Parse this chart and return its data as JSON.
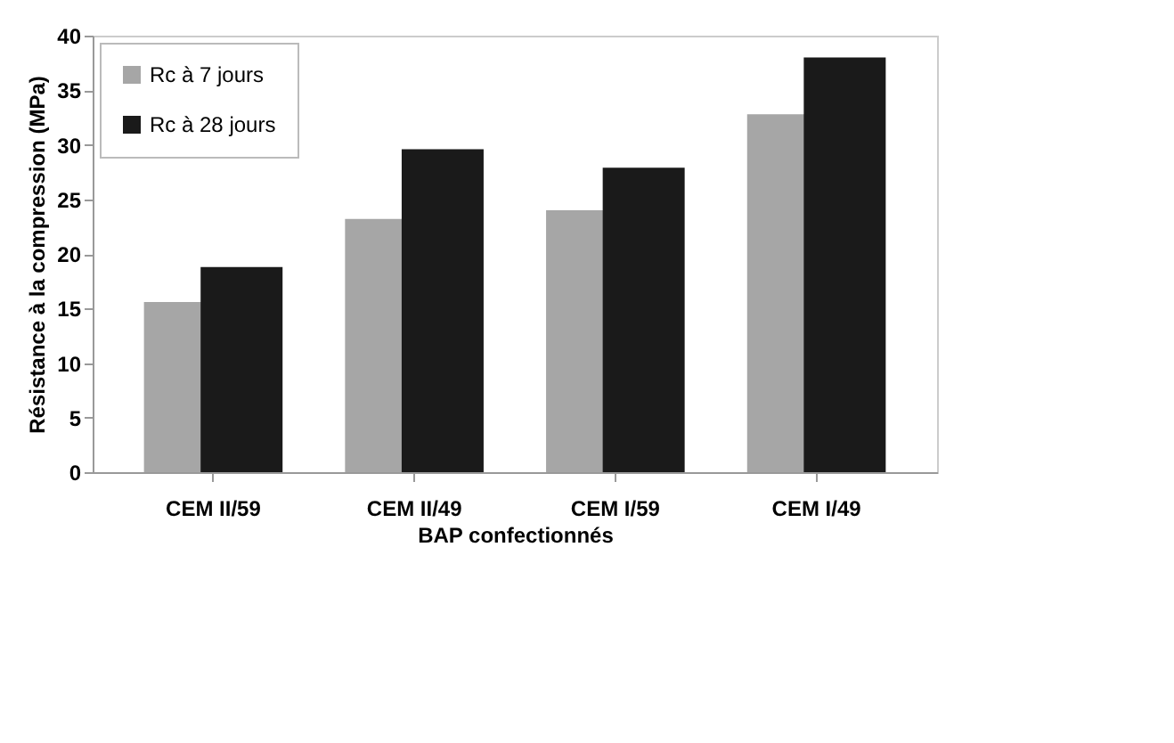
{
  "chart_data": {
    "type": "bar",
    "xlabel": "BAP confectionnés",
    "ylabel": "Résistance à la compression (MPa)",
    "categories": [
      "CEM II/59",
      "CEM II/49",
      "CEM I/59",
      "CEM I/49"
    ],
    "series": [
      {
        "name": "Rc à 7 jours",
        "color": "#a6a6a6",
        "values": [
          15.6,
          23.2,
          24.0,
          32.8
        ]
      },
      {
        "name": "Rc à 28 jours",
        "color": "#1a1a1a",
        "values": [
          18.8,
          29.6,
          27.9,
          38.0
        ]
      }
    ],
    "ylim": [
      0,
      40
    ],
    "yticks": [
      0,
      5,
      10,
      15,
      20,
      25,
      30,
      35,
      40
    ],
    "grid": false,
    "legend": "top left"
  }
}
